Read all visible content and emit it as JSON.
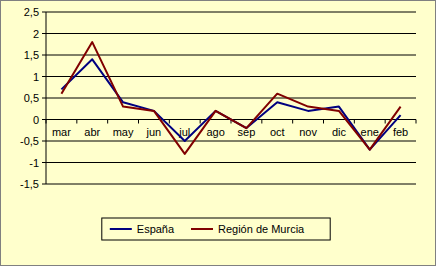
{
  "chart_data": {
    "type": "line",
    "categories": [
      "mar",
      "abr",
      "may",
      "jun",
      "jul",
      "ago",
      "sep",
      "oct",
      "nov",
      "dic",
      "ene",
      "feb"
    ],
    "series": [
      {
        "name": "España",
        "color": "#000080",
        "values": [
          0.7,
          1.4,
          0.4,
          0.2,
          -0.5,
          0.2,
          -0.2,
          0.4,
          0.2,
          0.3,
          -0.7,
          0.1
        ]
      },
      {
        "name": "Región de Murcia",
        "color": "#800000",
        "values": [
          0.6,
          1.8,
          0.3,
          0.2,
          -0.8,
          0.2,
          -0.2,
          0.6,
          0.3,
          0.2,
          -0.7,
          0.3
        ]
      }
    ],
    "ylim": [
      -1.5,
      2.5
    ],
    "yticks": [
      {
        "value": -1.5,
        "label": "-1,5"
      },
      -1,
      {
        "value": -0.5,
        "label": "-0,5"
      },
      0,
      {
        "value": 0.5,
        "label": "0,5"
      },
      1,
      {
        "value": 1.5,
        "label": "1,5"
      },
      2,
      {
        "value": 2.5,
        "label": "2,5"
      }
    ],
    "grid": true,
    "legend": "bottom"
  }
}
